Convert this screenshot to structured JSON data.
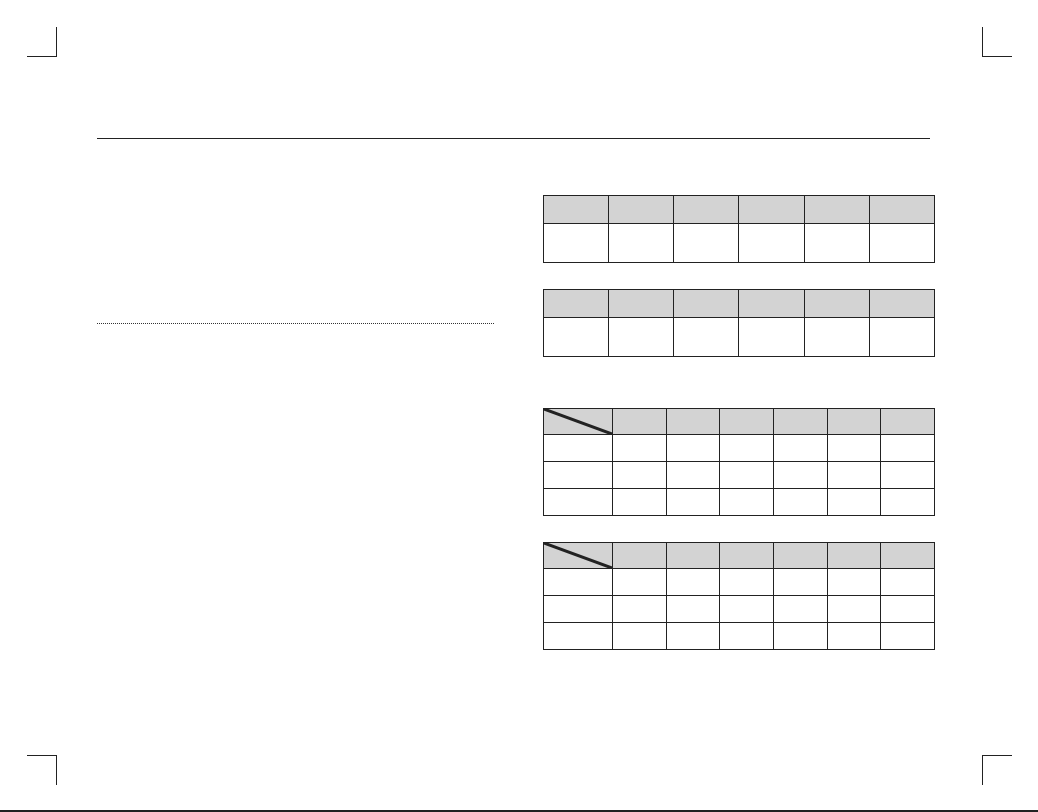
{
  "tables": [
    {
      "header": [
        "",
        "",
        "",
        "",
        "",
        ""
      ],
      "rows": [
        [
          "",
          "",
          "",
          "",
          "",
          ""
        ]
      ]
    },
    {
      "header": [
        "",
        "",
        "",
        "",
        "",
        ""
      ],
      "rows": [
        [
          "",
          "",
          "",
          "",
          "",
          ""
        ]
      ]
    },
    {
      "header": [
        "",
        "",
        "",
        "",
        "",
        "",
        ""
      ],
      "diagonal_corner": true,
      "rows": [
        [
          "",
          "",
          "",
          "",
          "",
          "",
          ""
        ],
        [
          "",
          "",
          "",
          "",
          "",
          "",
          ""
        ],
        [
          "",
          "",
          "",
          "",
          "",
          "",
          ""
        ]
      ]
    },
    {
      "header": [
        "",
        "",
        "",
        "",
        "",
        "",
        ""
      ],
      "diagonal_corner": true,
      "rows": [
        [
          "",
          "",
          "",
          "",
          "",
          "",
          ""
        ],
        [
          "",
          "",
          "",
          "",
          "",
          "",
          ""
        ],
        [
          "",
          "",
          "",
          "",
          "",
          "",
          ""
        ]
      ]
    }
  ],
  "colors": {
    "header_fill": "#d3d3d3",
    "rule": "#222222"
  }
}
